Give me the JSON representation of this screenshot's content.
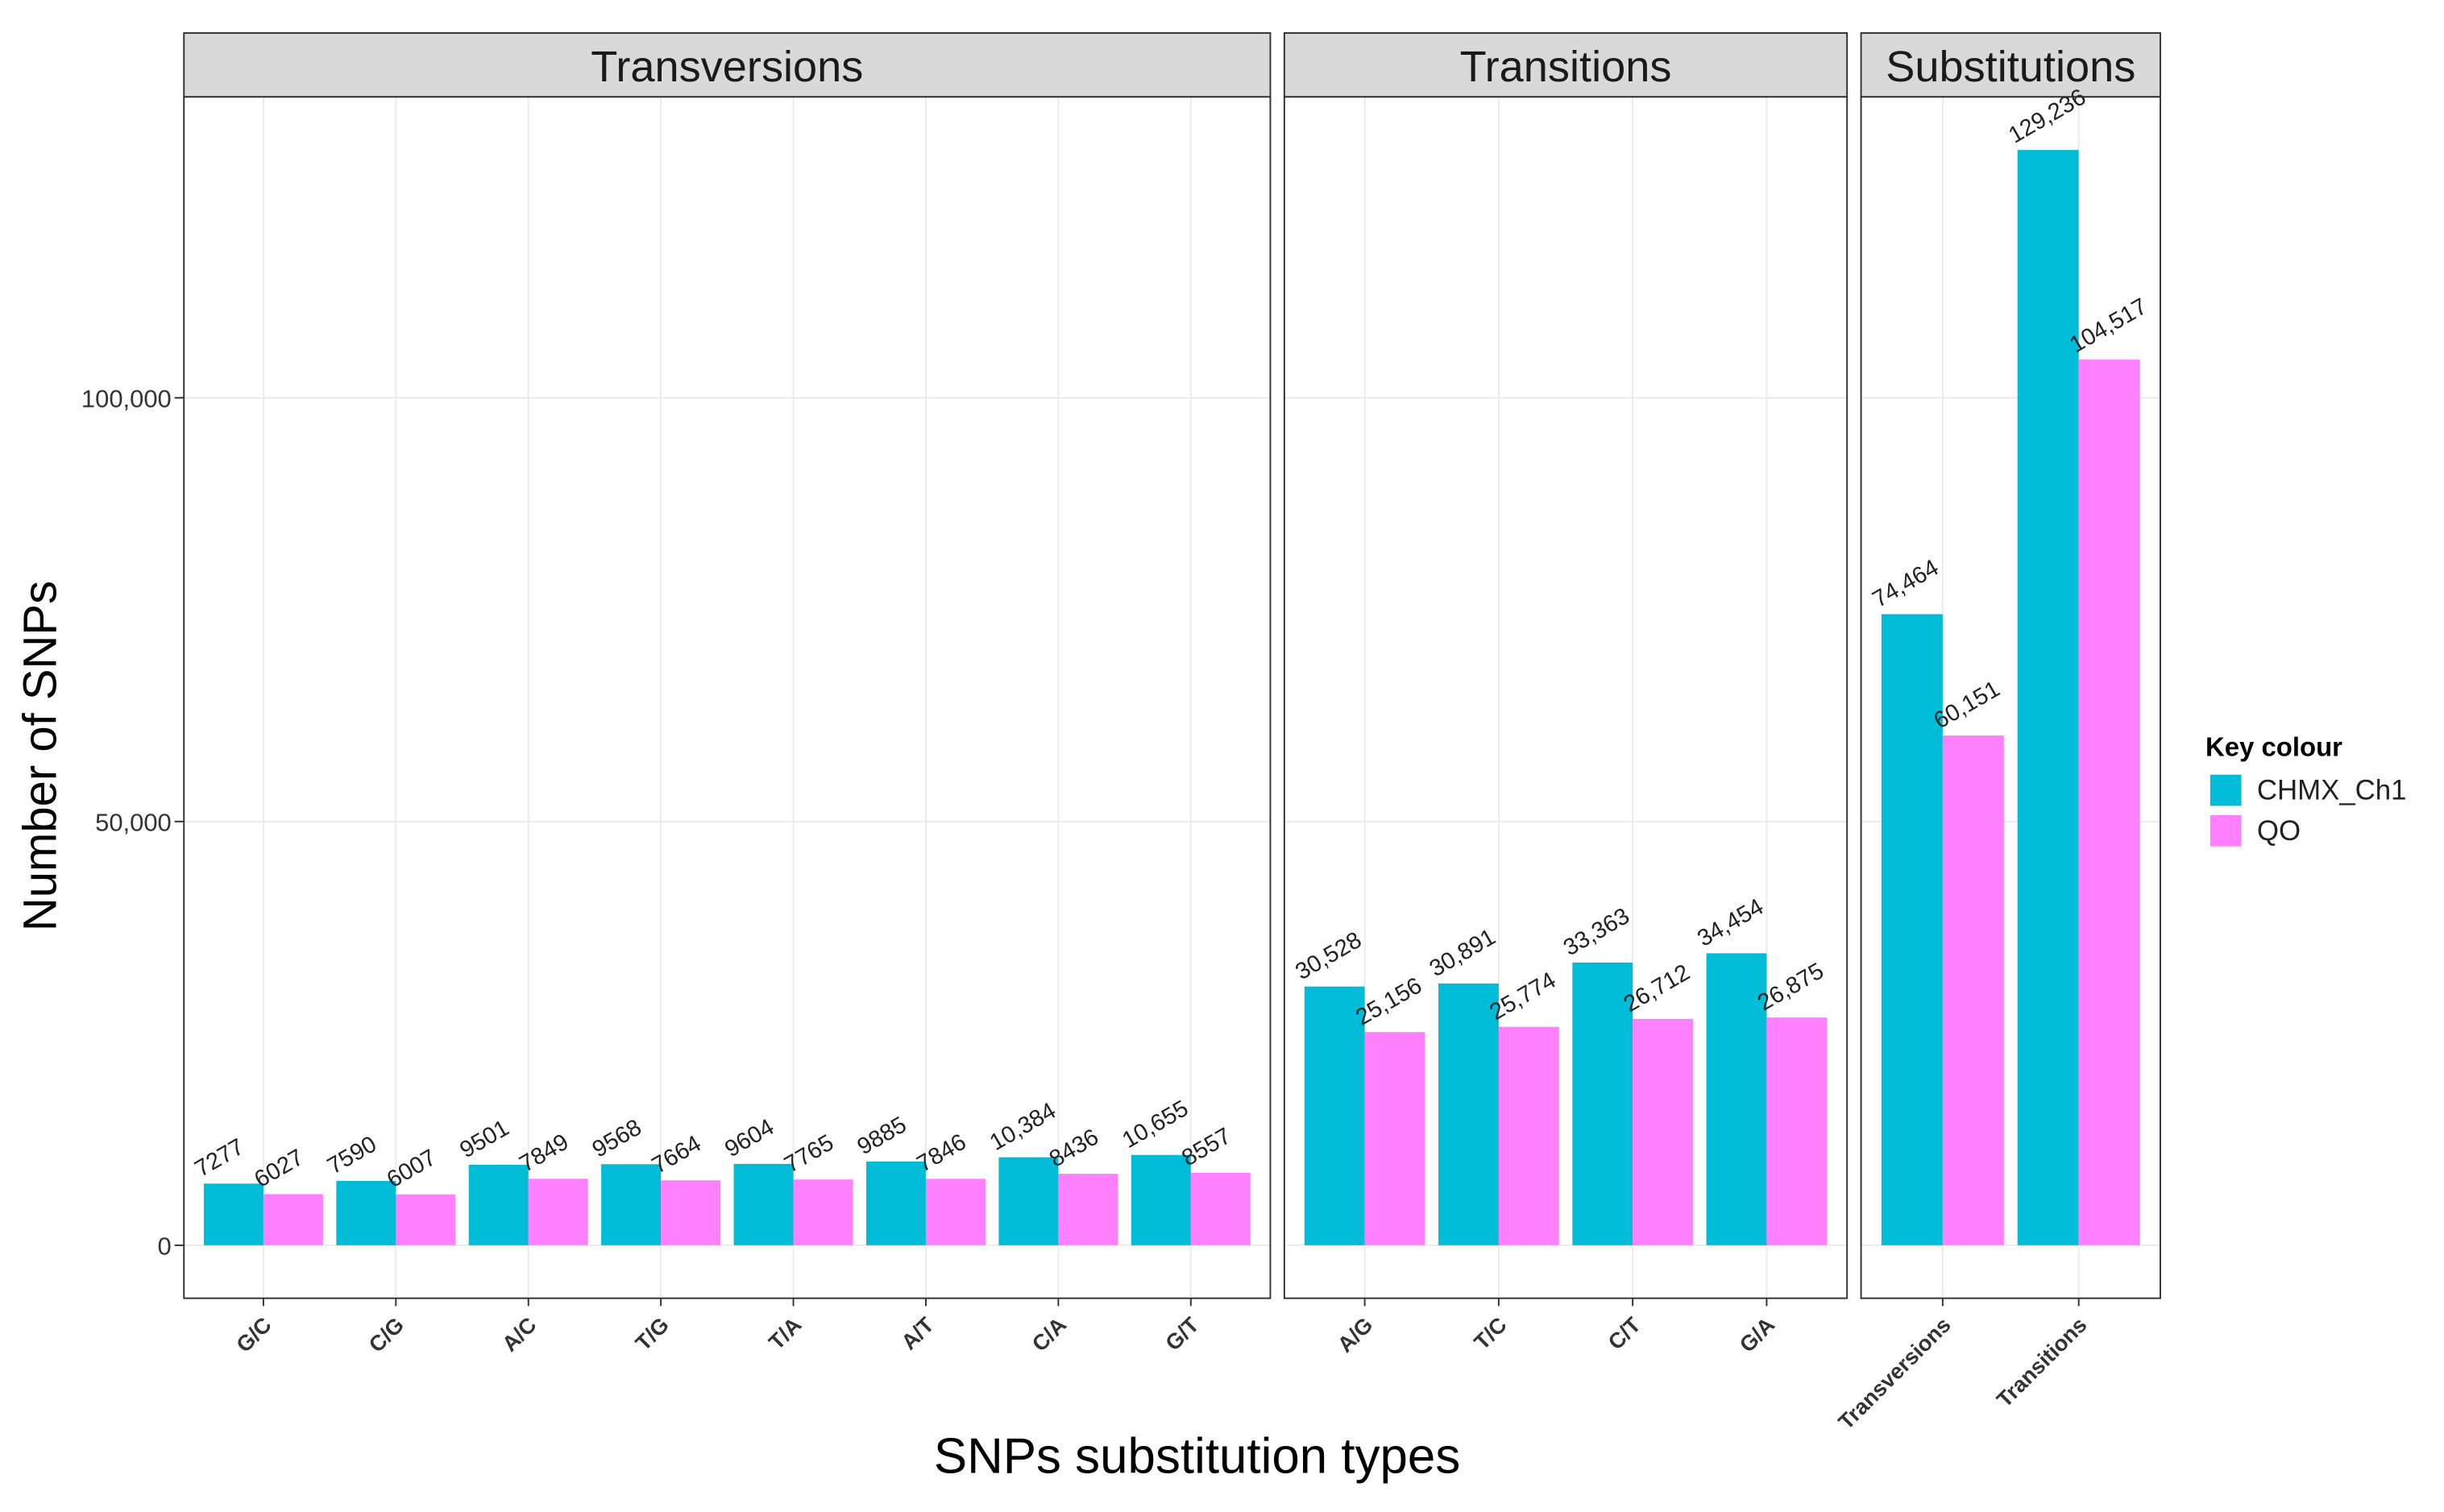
{
  "chart_data": {
    "type": "bar",
    "y_label": "Number of SNPs",
    "x_label": "SNPs substitution types",
    "ylim": [
      -6250,
      135500
    ],
    "yticks": [
      0,
      {
        "value": 50000,
        "label": "50,000"
      },
      {
        "value": 100000,
        "label": "100,000"
      }
    ],
    "grid": true,
    "legend_title": "Key colour",
    "legend_position": "right",
    "series": [
      {
        "name": "CHMX_Ch1",
        "color": "#00BCD6"
      },
      {
        "name": "QO",
        "color": "#FF80FF"
      }
    ],
    "facets": [
      {
        "title": "Transversions",
        "categories": [
          "G/C",
          "C/G",
          "A/C",
          "T/G",
          "T/A",
          "A/T",
          "C/A",
          "G/T"
        ],
        "series": [
          {
            "values": [
              7277,
              7590,
              9501,
              9568,
              9604,
              9885,
              10384,
              10655
            ],
            "value_labels": [
              "7277",
              "7590",
              "9501",
              "9568",
              "9604",
              "9885",
              "10,384",
              "10,655"
            ]
          },
          {
            "values": [
              6027,
              6007,
              7849,
              7664,
              7765,
              7846,
              8436,
              8557
            ],
            "value_labels": [
              "6027",
              "6007",
              "7849",
              "7664",
              "7765",
              "7846",
              "8436",
              "8557"
            ]
          }
        ]
      },
      {
        "title": "Transitions",
        "categories": [
          "A/G",
          "T/C",
          "C/T",
          "G/A"
        ],
        "series": [
          {
            "values": [
              30528,
              30891,
              33363,
              34454
            ],
            "value_labels": [
              "30,528",
              "30,891",
              "33,363",
              "34,454"
            ]
          },
          {
            "values": [
              25156,
              25774,
              26712,
              26875
            ],
            "value_labels": [
              "25,156",
              "25,774",
              "26,712",
              "26,875"
            ]
          }
        ]
      },
      {
        "title": "Substitutions",
        "categories": [
          "Transversions",
          "Transitions"
        ],
        "series": [
          {
            "values": [
              74464,
              129236
            ],
            "value_labels": [
              "74,464",
              "129,236"
            ]
          },
          {
            "values": [
              60151,
              104517
            ],
            "value_labels": [
              "60,151",
              "104,517"
            ]
          }
        ]
      }
    ]
  }
}
